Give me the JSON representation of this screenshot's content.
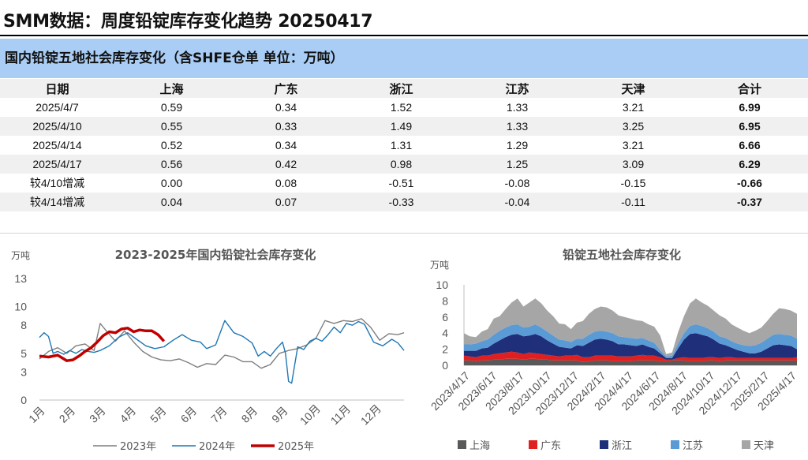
{
  "page_title": "SMM数据：周度铅锭库存变化趋势 20250417",
  "table": {
    "title": "国内铅锭五地社会库存变化（含SHFE仓单 单位：万吨）",
    "headers": [
      "日期",
      "上海",
      "广东",
      "浙江",
      "江苏",
      "天津",
      "合计"
    ],
    "rows": [
      [
        "2025/4/7",
        "0.59",
        "0.34",
        "1.52",
        "1.33",
        "3.21",
        "6.99"
      ],
      [
        "2025/4/10",
        "0.55",
        "0.33",
        "1.49",
        "1.33",
        "3.25",
        "6.95"
      ],
      [
        "2025/4/14",
        "0.52",
        "0.34",
        "1.31",
        "1.29",
        "3.21",
        "6.66"
      ],
      [
        "2025/4/17",
        "0.56",
        "0.42",
        "0.98",
        "1.25",
        "3.09",
        "6.29"
      ],
      [
        "较4/10增减",
        "0.00",
        "0.08",
        "-0.51",
        "-0.08",
        "-0.15",
        "-0.66"
      ],
      [
        "较4/14增减",
        "0.04",
        "0.07",
        "-0.33",
        "-0.04",
        "-0.11",
        "-0.37"
      ]
    ]
  },
  "chart_data": [
    {
      "type": "line",
      "title": "2023-2025年国内铅锭社会库存变化",
      "ylabel": "万吨",
      "ylim": [
        0,
        13
      ],
      "yticks": [
        "0",
        "3",
        "5",
        "8",
        "10",
        "13"
      ],
      "categories": [
        "1月",
        "2月",
        "3月",
        "4月",
        "5月",
        "6月",
        "7月",
        "8月",
        "9月",
        "10月",
        "11月",
        "12月"
      ],
      "series": [
        {
          "name": "2023年",
          "color": "#7f7f7f",
          "x": [
            0,
            0.3,
            0.6,
            0.9,
            1.2,
            1.5,
            1.8,
            2.0,
            2.2,
            2.5,
            2.8,
            3.1,
            3.4,
            3.7,
            4.0,
            4.3,
            4.6,
            4.9,
            5.2,
            5.5,
            5.8,
            6.1,
            6.4,
            6.7,
            7.0,
            7.3,
            7.6,
            7.9,
            8.2,
            8.5,
            8.8,
            9.1,
            9.4,
            9.7,
            10.0,
            10.3,
            10.6,
            10.9,
            11.2,
            11.5,
            11.8,
            12.0
          ],
          "y": [
            4.4,
            5.2,
            5.6,
            5.0,
            5.8,
            6.0,
            5.3,
            8.2,
            7.4,
            6.3,
            7.4,
            6.2,
            5.2,
            4.6,
            4.3,
            4.2,
            4.4,
            4.0,
            3.5,
            3.9,
            3.8,
            4.8,
            4.6,
            4.1,
            4.1,
            3.4,
            3.8,
            5.0,
            5.3,
            5.5,
            5.9,
            6.6,
            8.5,
            8.2,
            8.5,
            8.4,
            8.7,
            7.8,
            6.4,
            7.1,
            7.0,
            7.2
          ]
        },
        {
          "name": "2024年",
          "color": "#1f77b4",
          "x": [
            0,
            0.15,
            0.3,
            0.45,
            0.6,
            0.8,
            1.0,
            1.2,
            1.4,
            1.6,
            1.8,
            2.0,
            2.3,
            2.6,
            2.9,
            3.2,
            3.5,
            3.8,
            4.1,
            4.4,
            4.7,
            5.0,
            5.3,
            5.5,
            5.8,
            6.1,
            6.4,
            6.7,
            7.0,
            7.2,
            7.4,
            7.6,
            7.8,
            8.0,
            8.1,
            8.2,
            8.3,
            8.5,
            8.7,
            8.9,
            9.1,
            9.3,
            9.5,
            9.7,
            9.9,
            10.1,
            10.3,
            10.5,
            10.7,
            11.0,
            11.3,
            11.6,
            11.8,
            12.0
          ],
          "y": [
            6.7,
            7.2,
            6.8,
            5.0,
            5.2,
            4.9,
            5.3,
            5.0,
            5.4,
            5.2,
            5.1,
            5.3,
            5.8,
            6.7,
            7.2,
            6.5,
            5.8,
            5.5,
            5.7,
            6.4,
            7.0,
            6.4,
            6.2,
            5.5,
            5.9,
            8.5,
            7.2,
            6.8,
            6.1,
            4.7,
            5.2,
            4.7,
            5.5,
            6.2,
            5.0,
            2.0,
            1.8,
            5.7,
            5.4,
            6.3,
            6.6,
            6.3,
            7.0,
            7.8,
            7.2,
            8.2,
            8.0,
            8.4,
            8.1,
            6.2,
            5.8,
            6.5,
            6.1,
            5.3
          ]
        },
        {
          "name": "2025年",
          "color": "#c00000",
          "x": [
            0,
            0.3,
            0.6,
            0.9,
            1.1,
            1.3,
            1.5,
            1.7,
            1.9,
            2.1,
            2.3,
            2.5,
            2.7,
            2.9,
            3.1,
            3.3,
            3.5,
            3.7,
            3.9,
            4.1
          ],
          "y": [
            4.7,
            4.6,
            4.8,
            4.2,
            4.3,
            4.7,
            5.2,
            5.6,
            6.2,
            6.9,
            7.3,
            7.2,
            7.6,
            7.7,
            7.3,
            7.5,
            7.4,
            7.4,
            7.0,
            6.3
          ]
        }
      ]
    },
    {
      "type": "area",
      "title": "铅锭五地社会库存变化",
      "ylabel": "万吨",
      "ylim": [
        0,
        10
      ],
      "yticks": [
        "0",
        "2",
        "4",
        "6",
        "8",
        "10"
      ],
      "x_labels": [
        "2023/4/17",
        "2023/6/17",
        "2023/8/17",
        "2023/10/17",
        "2023/12/17",
        "2024/2/17",
        "2024/4/17",
        "2024/6/17",
        "2024/8/17",
        "2024/10/17",
        "2024/12/17",
        "2025/2/17",
        "2025/4/17"
      ],
      "stack_order": [
        "上海",
        "广东",
        "浙江",
        "江苏",
        "天津"
      ],
      "series": [
        {
          "name": "上海",
          "color": "#595959",
          "values": [
            0.6,
            0.6,
            0.5,
            0.6,
            0.6,
            0.7,
            0.7,
            0.8,
            0.8,
            0.8,
            0.7,
            0.8,
            0.8,
            0.7,
            0.7,
            0.6,
            0.6,
            0.6,
            0.6,
            0.6,
            0.4,
            0.5,
            0.6,
            0.6,
            0.6,
            0.5,
            0.5,
            0.5,
            0.5,
            0.6,
            0.6,
            0.6,
            0.6,
            0.5,
            0.5,
            0.6,
            0.6,
            0.6,
            0.5,
            0.5,
            0.5,
            0.6,
            0.6,
            0.5,
            0.6,
            0.6,
            0.6,
            0.6,
            0.6,
            0.6,
            0.6,
            0.6,
            0.6,
            0.6,
            0.6,
            0.6,
            0.6
          ]
        },
        {
          "name": "广东",
          "color": "#e02020",
          "values": [
            0.6,
            0.5,
            0.5,
            0.6,
            0.6,
            0.7,
            0.8,
            0.8,
            0.9,
            0.8,
            0.7,
            0.8,
            0.7,
            0.7,
            0.6,
            0.6,
            0.5,
            0.6,
            0.6,
            0.7,
            0.6,
            0.5,
            0.6,
            0.6,
            0.6,
            0.7,
            0.6,
            0.6,
            0.6,
            0.6,
            0.7,
            0.6,
            0.6,
            0.5,
            0.2,
            0.1,
            0.3,
            0.4,
            0.4,
            0.4,
            0.4,
            0.4,
            0.4,
            0.4,
            0.4,
            0.4,
            0.3,
            0.3,
            0.3,
            0.3,
            0.3,
            0.3,
            0.3,
            0.3,
            0.3,
            0.3,
            0.4
          ]
        },
        {
          "name": "浙江",
          "color": "#1f2f7a",
          "values": [
            0.6,
            0.7,
            0.8,
            0.9,
            1.0,
            1.3,
            1.6,
            1.9,
            2.1,
            2.3,
            2.2,
            2.1,
            2.4,
            2.2,
            1.8,
            1.5,
            1.2,
            1.0,
            0.9,
            1.2,
            1.4,
            1.8,
            2.0,
            2.1,
            2.0,
            1.8,
            1.5,
            1.5,
            1.4,
            1.2,
            1.3,
            1.1,
            0.9,
            0.5,
            0.2,
            0.2,
            1.2,
            2.2,
            3.0,
            3.1,
            2.9,
            2.6,
            2.2,
            1.8,
            1.5,
            1.2,
            1.0,
            0.8,
            0.6,
            0.6,
            0.8,
            1.2,
            1.6,
            1.7,
            1.6,
            1.5,
            1.0
          ]
        },
        {
          "name": "江苏",
          "color": "#5b9bd5",
          "values": [
            0.8,
            0.8,
            0.9,
            0.9,
            1.0,
            1.1,
            1.2,
            1.2,
            1.2,
            1.2,
            1.1,
            1.1,
            1.2,
            1.1,
            1.1,
            1.0,
            0.9,
            0.9,
            0.8,
            0.8,
            0.9,
            1.0,
            1.0,
            1.0,
            1.0,
            1.0,
            1.0,
            0.9,
            0.9,
            0.9,
            0.8,
            0.8,
            0.7,
            0.4,
            0.2,
            0.3,
            0.6,
            0.8,
            1.0,
            1.1,
            1.1,
            1.0,
            1.0,
            0.9,
            0.9,
            0.8,
            0.8,
            0.8,
            0.9,
            1.0,
            1.1,
            1.2,
            1.3,
            1.3,
            1.3,
            1.3,
            1.3
          ]
        },
        {
          "name": "天津",
          "color": "#a6a6a6",
          "values": [
            1.4,
            1.0,
            0.8,
            1.2,
            1.3,
            2.0,
            1.8,
            2.3,
            2.8,
            3.2,
            2.6,
            3.0,
            3.2,
            3.0,
            2.6,
            2.4,
            2.0,
            2.0,
            1.6,
            2.0,
            2.2,
            2.6,
            2.8,
            3.0,
            3.0,
            2.8,
            2.6,
            2.5,
            2.4,
            2.3,
            2.1,
            2.0,
            2.0,
            1.8,
            0.3,
            0.4,
            1.4,
            2.1,
            2.8,
            3.2,
            2.9,
            2.8,
            2.6,
            2.6,
            2.4,
            2.1,
            2.0,
            1.8,
            1.6,
            1.8,
            1.9,
            2.2,
            2.6,
            3.2,
            3.2,
            3.1,
            3.1
          ]
        }
      ]
    }
  ]
}
